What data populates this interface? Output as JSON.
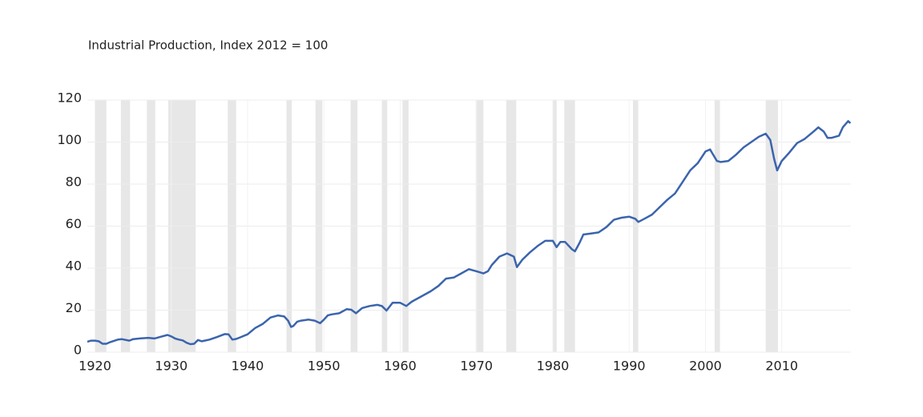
{
  "chart_data": {
    "type": "line",
    "title": "Industrial Production, Index 2012 = 100",
    "x": [
      1919.0,
      1919.5,
      1920.0,
      1920.5,
      1921.0,
      1921.5,
      1922.0,
      1923.0,
      1923.5,
      1924.5,
      1925.0,
      1926.0,
      1927.0,
      1927.8,
      1928.5,
      1929.5,
      1930.0,
      1930.5,
      1931.0,
      1931.5,
      1932.0,
      1932.5,
      1933.0,
      1933.5,
      1934.0,
      1935.0,
      1936.0,
      1937.0,
      1937.5,
      1938.0,
      1938.5,
      1939.0,
      1940.0,
      1941.0,
      1942.0,
      1943.0,
      1944.0,
      1944.8,
      1945.3,
      1945.7,
      1946.0,
      1946.5,
      1947.0,
      1948.0,
      1948.8,
      1949.5,
      1950.0,
      1950.5,
      1951.0,
      1952.0,
      1953.0,
      1953.6,
      1954.2,
      1955.0,
      1956.0,
      1957.0,
      1957.6,
      1958.2,
      1959.0,
      1960.0,
      1960.8,
      1961.5,
      1962.0,
      1963.0,
      1964.0,
      1965.0,
      1966.0,
      1967.0,
      1968.0,
      1969.0,
      1970.0,
      1970.9,
      1971.5,
      1972.0,
      1973.0,
      1974.0,
      1974.9,
      1975.3,
      1976.0,
      1977.0,
      1978.0,
      1979.0,
      1980.0,
      1980.5,
      1981.0,
      1981.6,
      1982.5,
      1982.9,
      1983.5,
      1984.0,
      1985.0,
      1986.0,
      1987.0,
      1988.0,
      1989.0,
      1990.0,
      1990.8,
      1991.2,
      1992.0,
      1993.0,
      1994.0,
      1995.0,
      1996.0,
      1997.0,
      1998.0,
      1999.0,
      2000.0,
      2000.6,
      2001.5,
      2002.0,
      2003.0,
      2004.0,
      2005.0,
      2006.0,
      2007.0,
      2007.9,
      2008.5,
      2009.0,
      2009.4,
      2010.0,
      2011.0,
      2012.0,
      2013.0,
      2014.0,
      2014.8,
      2015.5,
      2016.0,
      2016.5,
      2017.5,
      2018.0,
      2018.7,
      2019.0
    ],
    "series": [
      {
        "color": "#3b64ad",
        "values": [
          5,
          5.5,
          5.5,
          5.2,
          4.0,
          4.0,
          4.8,
          6.0,
          6.2,
          5.5,
          6.2,
          6.6,
          6.8,
          6.5,
          7.2,
          8.2,
          7.5,
          6.5,
          6.0,
          5.6,
          4.5,
          3.8,
          4.0,
          5.8,
          5.2,
          6.0,
          7.2,
          8.6,
          8.5,
          6.0,
          6.3,
          7.0,
          8.5,
          11.5,
          13.5,
          16.5,
          17.5,
          17,
          15,
          12,
          12.5,
          14.5,
          15,
          15.5,
          15.0,
          13.8,
          15.5,
          17.5,
          18.0,
          18.5,
          20.5,
          20.2,
          18.5,
          21,
          22,
          22.5,
          22,
          19.8,
          23.5,
          23.5,
          22.0,
          24,
          25,
          27,
          29,
          31.5,
          35,
          35.5,
          37.5,
          39.5,
          38.5,
          37.5,
          38.5,
          41.5,
          45.5,
          47,
          45.5,
          40.5,
          44,
          47.5,
          50.5,
          53,
          53,
          50,
          52.5,
          52.5,
          49,
          48,
          52,
          56,
          56.5,
          57,
          59.5,
          63,
          64,
          64.5,
          63.5,
          62,
          63.5,
          65.5,
          69,
          72.5,
          75.5,
          81,
          86.5,
          90,
          95.5,
          96.5,
          91,
          90.5,
          91,
          94,
          97.5,
          100,
          102.5,
          104,
          101,
          92,
          86.5,
          91,
          95,
          99.5,
          101.5,
          104.5,
          107,
          105,
          102,
          102,
          103,
          107,
          110,
          109
        ]
      }
    ],
    "recessions": [
      [
        1920.0,
        1921.5
      ],
      [
        1923.4,
        1924.6
      ],
      [
        1926.8,
        1927.9
      ],
      [
        1929.6,
        1933.2
      ],
      [
        1937.4,
        1938.5
      ],
      [
        1945.1,
        1945.8
      ],
      [
        1948.9,
        1949.8
      ],
      [
        1953.5,
        1954.4
      ],
      [
        1957.6,
        1958.3
      ],
      [
        1960.3,
        1961.1
      ],
      [
        1969.9,
        1970.9
      ],
      [
        1973.9,
        1975.2
      ],
      [
        1980.0,
        1980.5
      ],
      [
        1981.5,
        1982.9
      ],
      [
        1990.5,
        1991.2
      ],
      [
        2001.2,
        2001.9
      ],
      [
        2007.9,
        2009.5
      ]
    ],
    "recession_color": "#e7e7e7",
    "xlim": [
      1919,
      2019.9
    ],
    "xticks": [
      1920,
      1930,
      1940,
      1950,
      1960,
      1970,
      1980,
      1990,
      2000,
      2010
    ],
    "ylim": [
      0,
      120
    ],
    "yticks": [
      0,
      20,
      40,
      60,
      80,
      100,
      120
    ],
    "grid": true
  }
}
